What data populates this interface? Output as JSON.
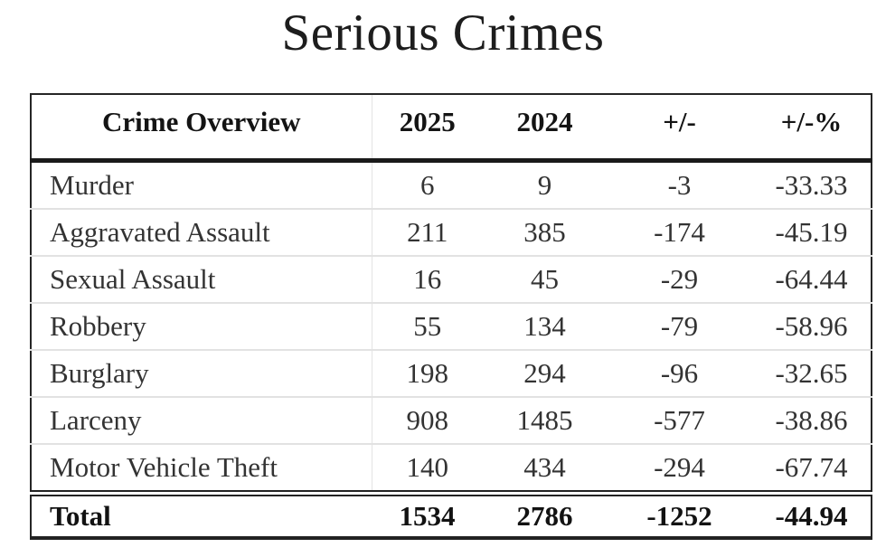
{
  "page": {
    "title": "Serious Crimes"
  },
  "chart_data": {
    "type": "table",
    "title": "Serious Crimes",
    "columns": [
      "Crime Overview",
      "2025",
      "2024",
      "+/-",
      "+/-%"
    ],
    "rows": [
      {
        "label": "Murder",
        "values": [
          "6",
          "9",
          "-3",
          "-33.33"
        ]
      },
      {
        "label": "Aggravated Assault",
        "values": [
          "211",
          "385",
          "-174",
          "-45.19"
        ]
      },
      {
        "label": "Sexual Assault",
        "values": [
          "16",
          "45",
          "-29",
          "-64.44"
        ]
      },
      {
        "label": "Robbery",
        "values": [
          "55",
          "134",
          "-79",
          "-58.96"
        ]
      },
      {
        "label": "Burglary",
        "values": [
          "198",
          "294",
          "-96",
          "-32.65"
        ]
      },
      {
        "label": "Larceny",
        "values": [
          "908",
          "1485",
          "-577",
          "-38.86"
        ]
      },
      {
        "label": "Motor Vehicle Theft",
        "values": [
          "140",
          "434",
          "-294",
          "-67.74"
        ]
      }
    ],
    "total_row": {
      "label": "Total",
      "values": [
        "1534",
        "2786",
        "-1252",
        "-44.94"
      ]
    },
    "layout": {
      "grid": "horizontal-rules-only",
      "legend": "none",
      "header_position": "top",
      "first_column_alignment": "left",
      "numeric_alignment": "center"
    }
  },
  "colors": {
    "background": "#ffffff",
    "title_text": "#1d1d1d",
    "header_text": "#141414",
    "body_text": "#333333",
    "strong_border": "#1a1a1a",
    "row_divider": "#e2e2e2",
    "column_divider": "#e3e3e3"
  }
}
